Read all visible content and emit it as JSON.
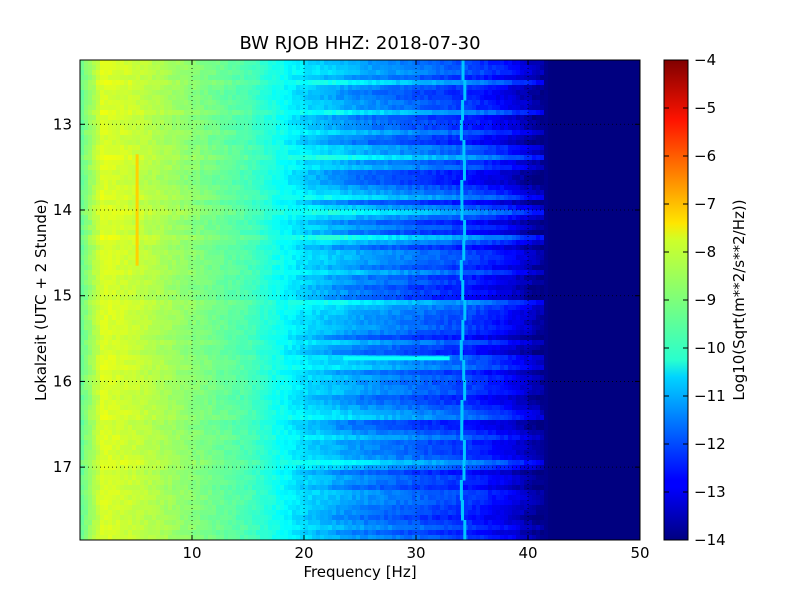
{
  "chart_data": {
    "type": "heatmap",
    "title": "BW RJOB HHZ: 2018-07-30",
    "xlabel": "Frequency [Hz]",
    "ylabel": "Lokalzeit (UTC + 2 Stunde)",
    "xlim": [
      0,
      50
    ],
    "ylim_top_to_bottom": [
      12.25,
      17.85
    ],
    "x_ticks": [
      10,
      20,
      30,
      40,
      50
    ],
    "x_tick_labels": [
      "10",
      "20",
      "30",
      "40",
      "50"
    ],
    "y_ticks": [
      13,
      14,
      15,
      16,
      17
    ],
    "y_tick_labels": [
      "13",
      "14",
      "15",
      "16",
      "17"
    ],
    "grid": true,
    "colormap": "jet",
    "colorbar": {
      "label": "Log10(Sqrt(m**2/s**2/Hz))",
      "range": [
        -14,
        -4
      ],
      "ticks": [
        -4,
        -5,
        -6,
        -7,
        -8,
        -9,
        -10,
        -11,
        -12,
        -13,
        -14
      ],
      "tick_labels": [
        "−4",
        "−5",
        "−6",
        "−7",
        "−8",
        "−9",
        "−10",
        "−11",
        "−12",
        "−13",
        "−14"
      ]
    },
    "spectral_profile": {
      "frequency_hz": [
        0,
        2,
        5,
        10,
        15,
        20,
        25,
        30,
        35,
        38,
        40,
        42,
        50
      ],
      "log_amplitude": [
        -9.3,
        -8.1,
        -8.3,
        -8.9,
        -9.5,
        -10.6,
        -11.3,
        -11.8,
        -12.3,
        -12.8,
        -13.4,
        -14.0,
        -14.0
      ]
    },
    "features": [
      {
        "frequency_hz": 5.1,
        "time_range": [
          13.35,
          14.65
        ],
        "log_amplitude": -7.3
      },
      {
        "frequency_hz": 34.2,
        "log_amplitude": -10.8
      },
      {
        "frequency_hz_range": [
          23.5,
          33
        ],
        "time": 15.73,
        "log_amplitude": -10.2
      }
    ]
  }
}
